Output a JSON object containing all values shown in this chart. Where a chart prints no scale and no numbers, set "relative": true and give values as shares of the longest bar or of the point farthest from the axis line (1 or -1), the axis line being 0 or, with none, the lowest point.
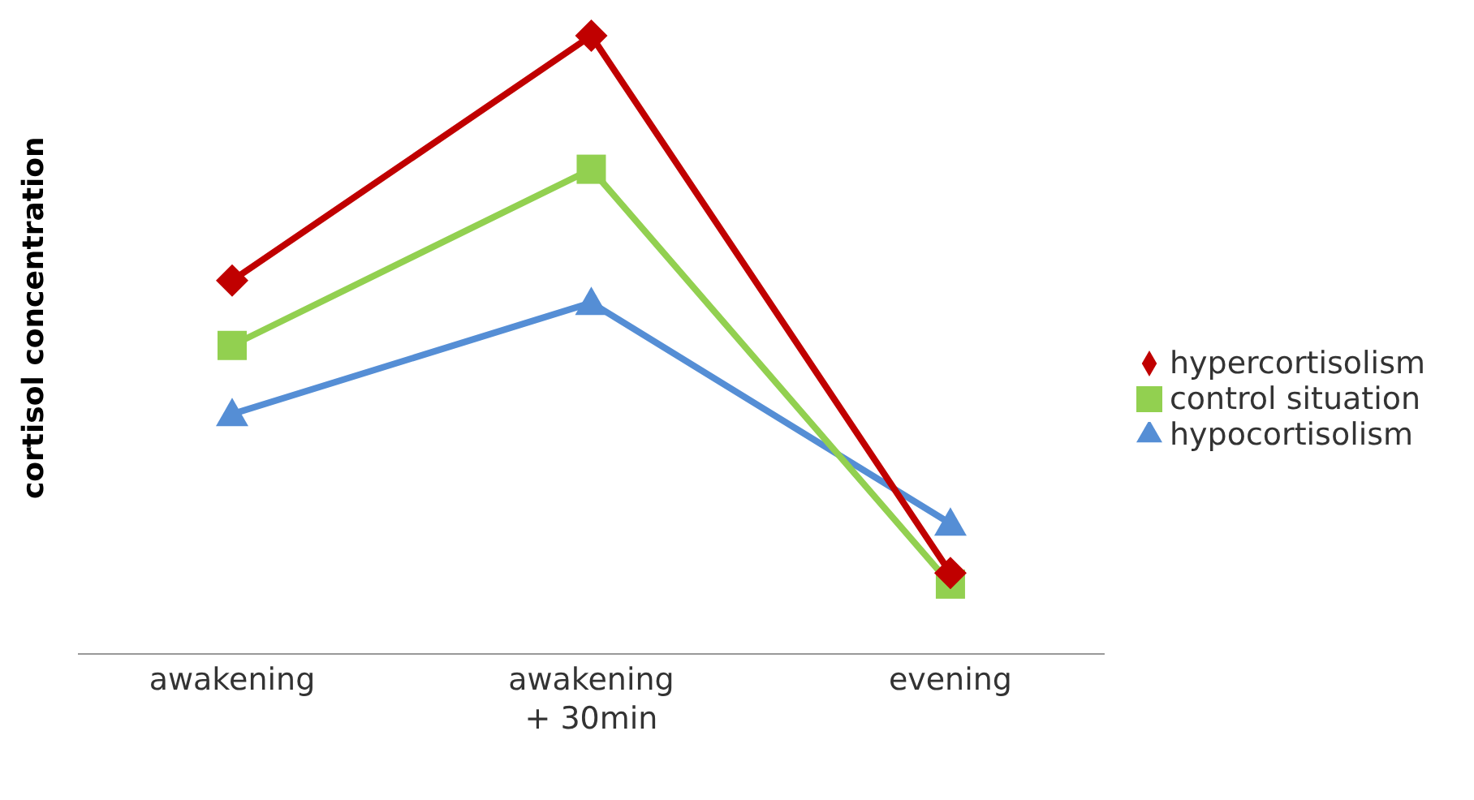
{
  "chart_data": {
    "type": "line",
    "ylabel": "cortisol concentration",
    "relative": true,
    "categories": [
      "awakening",
      "awakening\n+ 30min",
      "evening"
    ],
    "legend": "right",
    "grid": false,
    "series": [
      {
        "name": "hypercortisolism",
        "color": "#c00000",
        "marker": "diamond",
        "values": [
          0.604,
          1,
          0.131
        ]
      },
      {
        "name": "control situation",
        "color": "#92d050",
        "marker": "square",
        "values": [
          0.499,
          0.784,
          0.113
        ]
      },
      {
        "name": "hypocortisolism",
        "color": "#558ed5",
        "marker": "triangle",
        "values": [
          0.388,
          0.568,
          0.211
        ]
      }
    ]
  }
}
